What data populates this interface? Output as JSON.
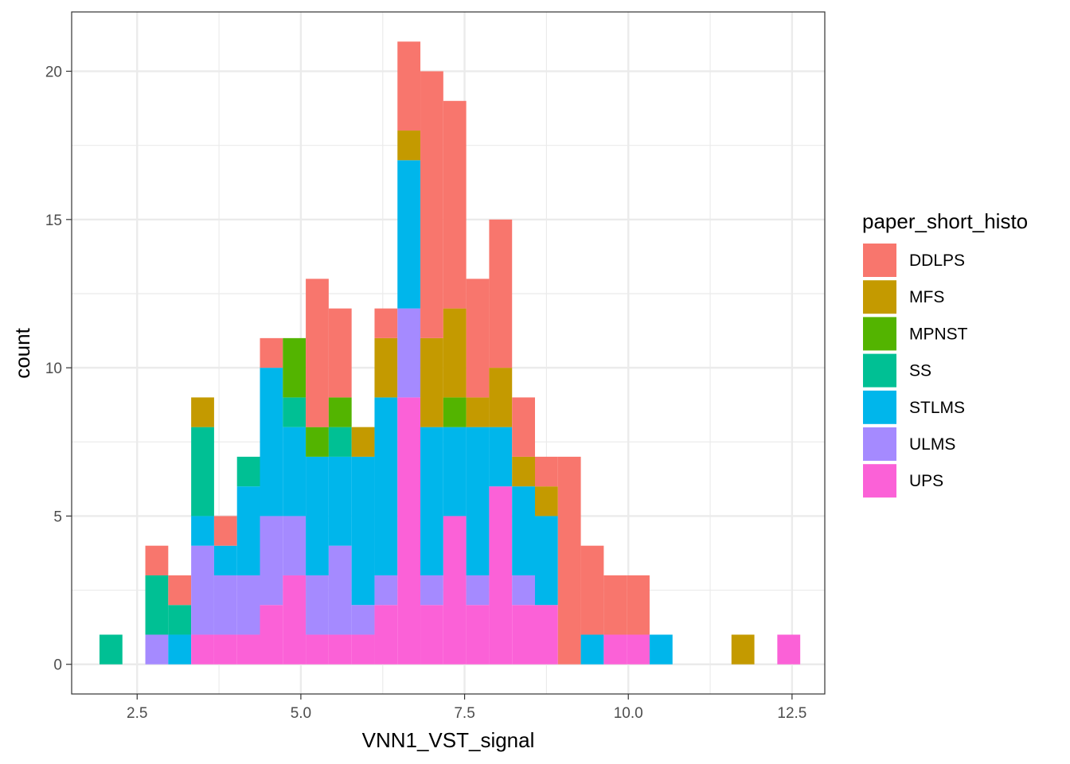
{
  "chart_data": {
    "type": "bar",
    "subtype": "stacked-histogram",
    "xlabel": "VNN1_VST_signal",
    "ylabel": "count",
    "xlim": [
      1.5,
      13.0
    ],
    "ylim": [
      -1,
      22
    ],
    "bin_width": 0.35,
    "x_ticks": [
      2.5,
      5.0,
      7.5,
      10.0,
      12.5
    ],
    "x_tick_labels": [
      "2.5",
      "5.0",
      "7.5",
      "10.0",
      "12.5"
    ],
    "y_ticks": [
      0,
      5,
      10,
      15,
      20
    ],
    "y_tick_labels": [
      "0",
      "5",
      "10",
      "15",
      "20"
    ],
    "grid": true,
    "legend": {
      "title": "paper_short_histo",
      "position": "right"
    },
    "stack_order": [
      "UPS",
      "ULMS",
      "STLMS",
      "SS",
      "MPNST",
      "MFS",
      "DDLPS"
    ],
    "bin_centers": [
      2.1,
      2.8,
      3.15,
      3.5,
      3.85,
      4.2,
      4.55,
      4.9,
      5.25,
      5.6,
      5.95,
      6.3,
      6.65,
      7.0,
      7.35,
      7.7,
      8.05,
      8.4,
      8.75,
      9.1,
      9.45,
      9.8,
      10.15,
      10.5,
      11.75,
      12.45
    ],
    "series": [
      {
        "name": "DDLPS",
        "color": "#F8766D",
        "values": [
          0,
          1,
          1,
          0,
          1,
          0,
          1,
          0,
          5,
          3,
          0,
          1,
          3,
          9,
          7,
          4,
          5,
          2,
          1,
          7,
          3,
          2,
          2,
          0,
          0,
          0
        ]
      },
      {
        "name": "MFS",
        "color": "#C49A00",
        "values": [
          0,
          0,
          0,
          1,
          0,
          0,
          0,
          0,
          0,
          0,
          1,
          2,
          1,
          3,
          3,
          1,
          2,
          1,
          1,
          0,
          0,
          0,
          0,
          0,
          1,
          0
        ]
      },
      {
        "name": "MPNST",
        "color": "#53B400",
        "values": [
          0,
          0,
          0,
          0,
          0,
          0,
          0,
          2,
          1,
          1,
          0,
          0,
          0,
          0,
          1,
          0,
          0,
          0,
          0,
          0,
          0,
          0,
          0,
          0,
          0,
          0
        ]
      },
      {
        "name": "SS",
        "color": "#00C094",
        "values": [
          1,
          2,
          1,
          3,
          0,
          1,
          0,
          1,
          0,
          1,
          0,
          0,
          0,
          0,
          0,
          0,
          0,
          0,
          0,
          0,
          0,
          0,
          0,
          0,
          0,
          0
        ]
      },
      {
        "name": "STLMS",
        "color": "#00B6EB",
        "values": [
          0,
          0,
          1,
          1,
          1,
          3,
          5,
          3,
          4,
          3,
          5,
          6,
          5,
          5,
          3,
          5,
          2,
          3,
          3,
          0,
          1,
          0,
          0,
          1,
          0,
          0
        ]
      },
      {
        "name": "ULMS",
        "color": "#A58AFF",
        "values": [
          0,
          1,
          0,
          3,
          2,
          2,
          3,
          2,
          2,
          3,
          1,
          1,
          3,
          1,
          0,
          1,
          0,
          1,
          0,
          0,
          0,
          0,
          0,
          0,
          0,
          0
        ]
      },
      {
        "name": "UPS",
        "color": "#FB61D7",
        "values": [
          0,
          0,
          0,
          1,
          1,
          1,
          2,
          3,
          1,
          1,
          1,
          2,
          9,
          2,
          5,
          2,
          6,
          2,
          2,
          0,
          0,
          1,
          1,
          0,
          0,
          1
        ]
      }
    ]
  }
}
